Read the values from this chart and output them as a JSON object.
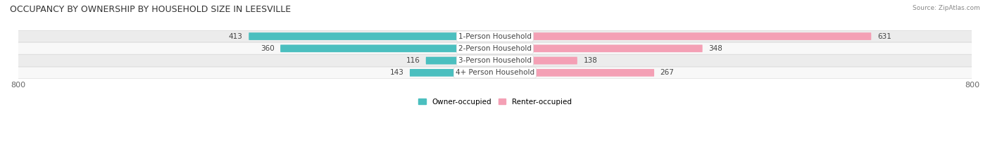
{
  "title": "OCCUPANCY BY OWNERSHIP BY HOUSEHOLD SIZE IN LEESVILLE",
  "source": "Source: ZipAtlas.com",
  "categories": [
    "1-Person Household",
    "2-Person Household",
    "3-Person Household",
    "4+ Person Household"
  ],
  "owner_values": [
    413,
    360,
    116,
    143
  ],
  "renter_values": [
    631,
    348,
    138,
    267
  ],
  "owner_color": "#4BBFBF",
  "renter_color": "#F4A0B5",
  "row_bg_even": "#ECECEC",
  "row_bg_odd": "#F8F8F8",
  "axis_max": 800,
  "axis_min": -800,
  "legend_owner": "Owner-occupied",
  "legend_renter": "Renter-occupied",
  "title_fontsize": 9,
  "label_fontsize": 7.5,
  "value_fontsize": 7.5,
  "tick_fontsize": 8
}
